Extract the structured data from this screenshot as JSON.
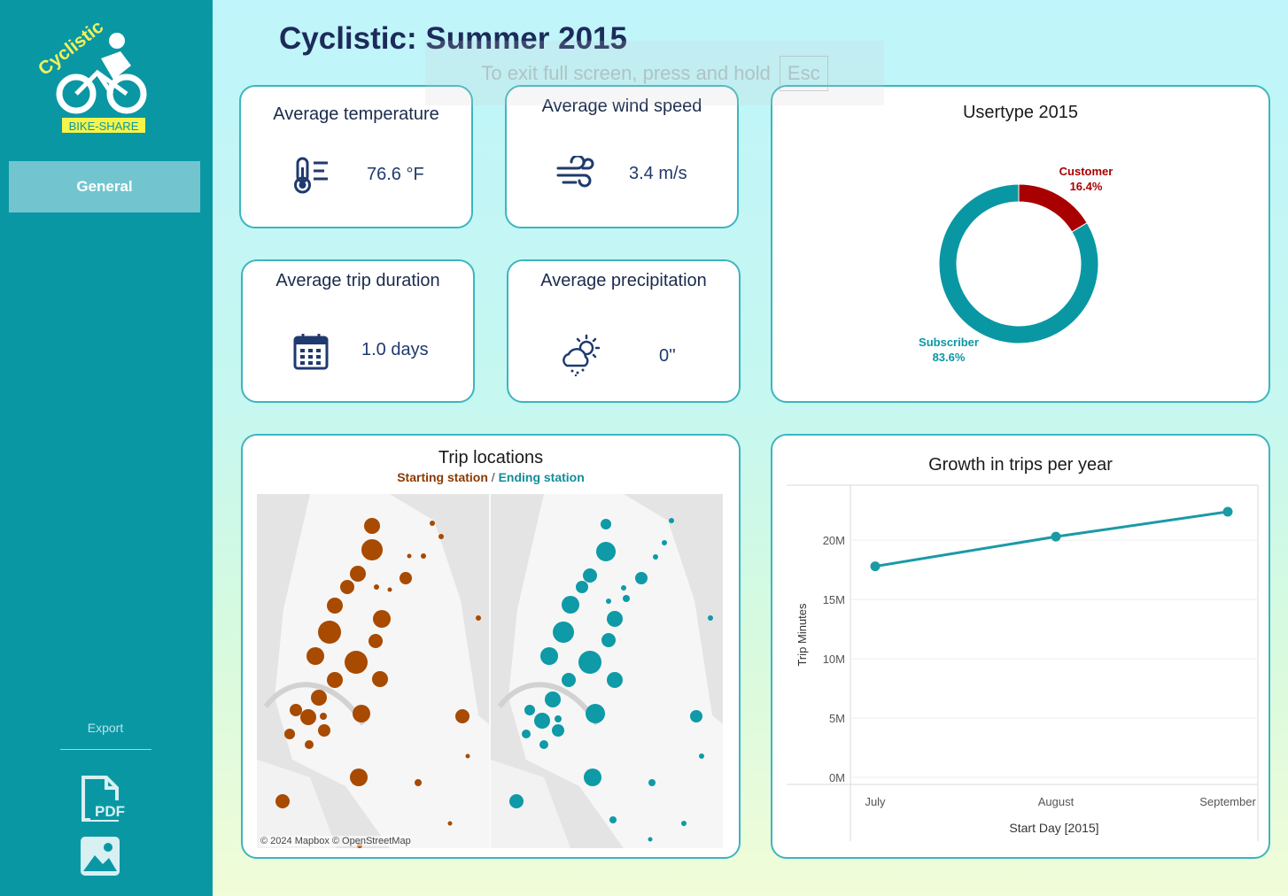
{
  "app": {
    "title": "Cyclistic: Summer 2015",
    "fullscreen_hint": "To exit full screen, press and hold",
    "fullscreen_key": "Esc"
  },
  "sidebar": {
    "logo_word": "Cyclistic",
    "logo_tag": "BIKE-SHARE",
    "nav": [
      {
        "label": "General",
        "active": true
      }
    ],
    "export_label": "Export",
    "export_icons": [
      "pdf-icon",
      "image-icon"
    ],
    "pdf_label": "PDF"
  },
  "kpis": {
    "temperature": {
      "title": "Average temperature",
      "value": "76.6 °F",
      "icon": "thermometer-icon"
    },
    "wind": {
      "title": "Average wind speed",
      "value": "3.4 m/s",
      "icon": "wind-icon"
    },
    "duration": {
      "title": "Average trip duration",
      "value": "1.0 days",
      "icon": "calendar-icon"
    },
    "precipitation": {
      "title": "Average precipitation",
      "value": "0''",
      "icon": "cloud-sun-icon"
    }
  },
  "usertype": {
    "title": "Usertype 2015",
    "colors": {
      "customer": "#a80000",
      "subscriber": "#0a97a4"
    }
  },
  "map": {
    "title": "Trip locations",
    "legend_start": "Starting station",
    "legend_sep": "/",
    "legend_end": "Ending station",
    "attribution": "© 2024 Mapbox  © OpenStreetMap",
    "colors": {
      "start": "#a84a00",
      "end": "#0e9aa6"
    }
  },
  "growth": {
    "title": "Growth in trips per year",
    "colors": {
      "line": "#1a9aa5"
    }
  },
  "chart_data": [
    {
      "type": "pie",
      "title": "Usertype 2015",
      "categories": [
        "Customer",
        "Subscriber"
      ],
      "values": [
        16.4,
        83.6
      ],
      "labels": [
        "16.4%",
        "83.6%"
      ]
    },
    {
      "type": "line",
      "title": "Growth in trips per year",
      "categories": [
        "July",
        "August",
        "September"
      ],
      "values": [
        17800000,
        20300000,
        22400000
      ],
      "xlabel": "Start Day [2015]",
      "ylabel": "Trip Minutes",
      "yticks": [
        "0M",
        "5M",
        "10M",
        "15M",
        "20M"
      ],
      "ylim": [
        0,
        23000000
      ],
      "grid": true
    }
  ]
}
